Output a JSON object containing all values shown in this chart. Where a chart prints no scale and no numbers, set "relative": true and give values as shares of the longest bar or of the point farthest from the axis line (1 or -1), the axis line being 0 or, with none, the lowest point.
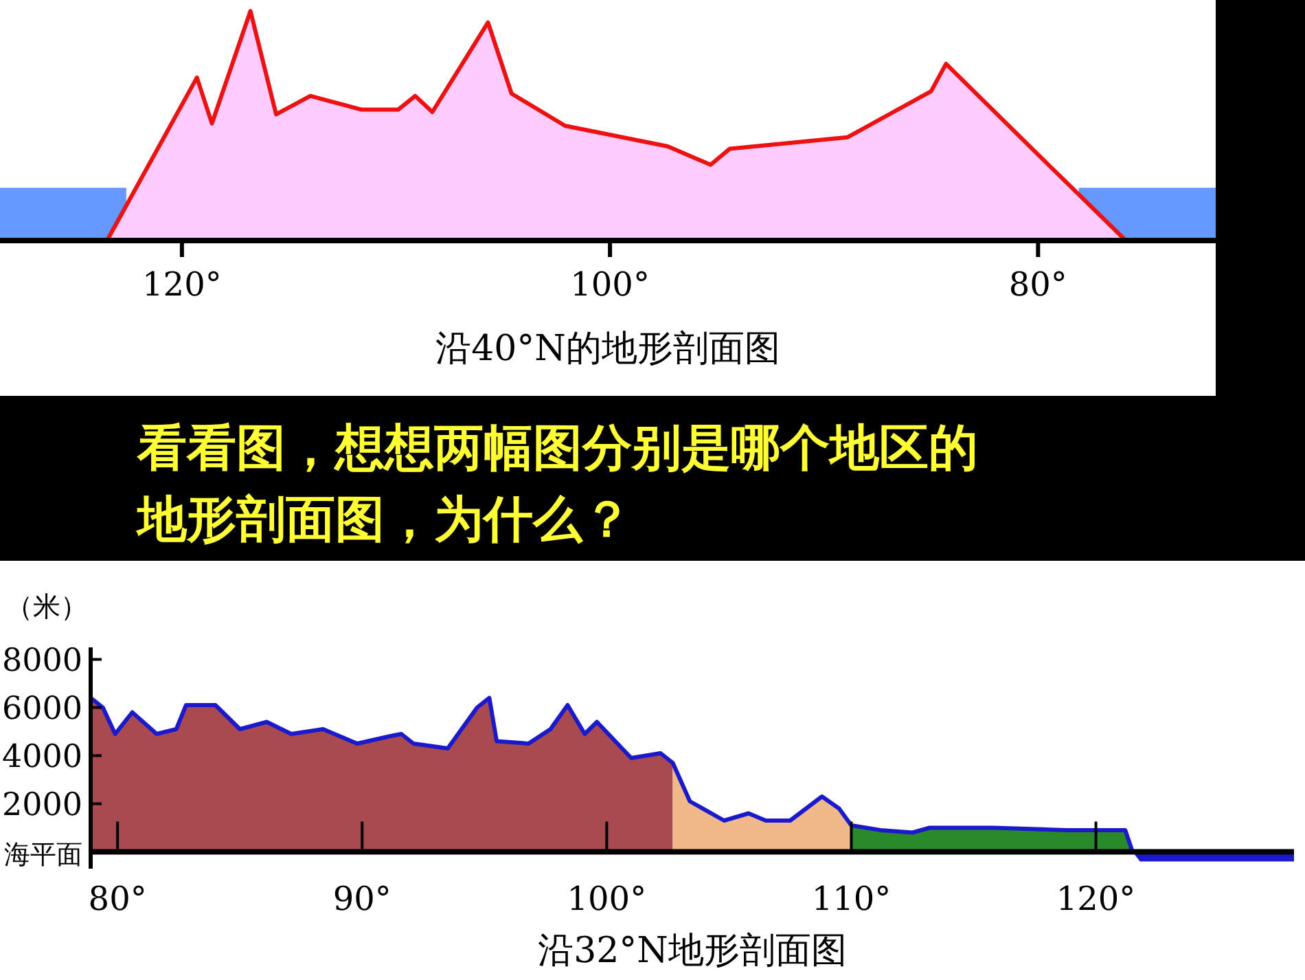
{
  "chart_data": [
    {
      "type": "area",
      "title": "沿40°N的地形剖面图",
      "relative": true,
      "xlim": [
        128.5,
        71.7
      ],
      "xticks": [
        {
          "value": 120,
          "label": "120°"
        },
        {
          "value": 100,
          "label": "100°"
        },
        {
          "value": 80,
          "label": "80°"
        }
      ],
      "series": [
        {
          "type": "area",
          "color": "#6699ff",
          "x": [
            128.5,
            122.6
          ],
          "values": [
            0.23,
            0.23
          ]
        },
        {
          "type": "area",
          "color": "#6699ff",
          "x": [
            78.1,
            71.7
          ],
          "values": [
            0.23,
            0.23
          ]
        },
        {
          "type": "area",
          "color": "#ffccff",
          "x": [
            123.5,
            119.3,
            118.6,
            116.8,
            115.6,
            114.0,
            111.6,
            109.9,
            109.1,
            108.3,
            105.7,
            104.6,
            102.1,
            97.3,
            95.3,
            94.4,
            88.9,
            85.0,
            84.3,
            80.5,
            75.9
          ],
          "values": [
            0,
            0.71,
            0.51,
            1.0,
            0.55,
            0.63,
            0.57,
            0.57,
            0.63,
            0.56,
            0.95,
            0.64,
            0.5,
            0.41,
            0.33,
            0.4,
            0.45,
            0.65,
            0.77,
            0.42,
            0
          ]
        }
      ]
    },
    {
      "type": "other",
      "title": "看看图，想想两幅图分别是哪个地区的地形剖面图，为什么？"
    },
    {
      "type": "area",
      "title": "沿32°N地形剖面图",
      "ylabel": "（米）",
      "xlim": [
        78.9,
        128.1
      ],
      "ylim": [
        -700,
        8500
      ],
      "xticks": [
        {
          "value": 80,
          "label": "80°"
        },
        {
          "value": 90,
          "label": "90°"
        },
        {
          "value": 100,
          "label": "100°"
        },
        {
          "value": 110,
          "label": "110°"
        },
        {
          "value": 120,
          "label": "120°"
        }
      ],
      "yticks": [
        {
          "value": 0,
          "label": "海平面"
        },
        2000,
        4000,
        6000,
        8000
      ],
      "series": [
        {
          "type": "area",
          "color": "#a84a4f",
          "x": [
            78.9,
            79.4,
            79.9,
            80.6,
            81.6,
            82.4,
            82.8,
            84.0,
            85.0,
            86.1,
            87.1,
            88.4,
            89.8,
            91.1,
            91.6,
            92.1,
            93.5,
            94.7,
            95.2,
            95.5,
            96.8,
            97.7,
            98.4,
            99.1,
            99.6,
            101.0,
            102.2,
            102.7
          ],
          "values": [
            6400,
            6000,
            4900,
            5800,
            4900,
            5100,
            6100,
            6100,
            5100,
            5400,
            4900,
            5100,
            4500,
            4800,
            4900,
            4500,
            4300,
            6000,
            6400,
            4600,
            4500,
            5100,
            6100,
            4900,
            5400,
            3900,
            4100,
            3700
          ]
        },
        {
          "type": "area",
          "color": "#f0b98a",
          "x": [
            102.7,
            103.4,
            104.8,
            105.8,
            106.5,
            107.5,
            108.8,
            109.5,
            110.0
          ],
          "values": [
            3700,
            2100,
            1300,
            1600,
            1300,
            1300,
            2300,
            1800,
            1100
          ]
        },
        {
          "type": "area",
          "color": "#2a8a2a",
          "x": [
            110.0,
            111.2,
            112.5,
            113.2,
            115.8,
            118.8,
            121.2,
            121.5
          ],
          "values": [
            1100,
            900,
            800,
            1000,
            1000,
            900,
            900,
            0
          ]
        },
        {
          "type": "area",
          "color": "#1a1acc",
          "x": [
            121.5,
            121.8,
            128.1
          ],
          "values": [
            0,
            -400,
            -400
          ]
        },
        {
          "type": "line",
          "color": "#1a1acc",
          "x": [
            78.9,
            79.4,
            79.9,
            80.6,
            81.6,
            82.4,
            82.8,
            84.0,
            85.0,
            86.1,
            87.1,
            88.4,
            89.8,
            91.1,
            91.6,
            92.1,
            93.5,
            94.7,
            95.2,
            95.5,
            96.8,
            97.7,
            98.4,
            99.1,
            99.6,
            101.0,
            102.2,
            102.7,
            103.4,
            104.8,
            105.8,
            106.5,
            107.5,
            108.8,
            109.5,
            110.0,
            111.2,
            112.5,
            113.2,
            115.8,
            118.8,
            121.2,
            121.5
          ],
          "values": [
            6400,
            6000,
            4900,
            5800,
            4900,
            5100,
            6100,
            6100,
            5100,
            5400,
            4900,
            5100,
            4500,
            4800,
            4900,
            4500,
            4300,
            6000,
            6400,
            4600,
            4500,
            5100,
            6100,
            4900,
            5400,
            3900,
            4100,
            3700,
            2100,
            1300,
            1600,
            1300,
            1300,
            2300,
            1800,
            1100,
            900,
            800,
            1000,
            1000,
            900,
            900,
            0
          ]
        }
      ]
    }
  ]
}
